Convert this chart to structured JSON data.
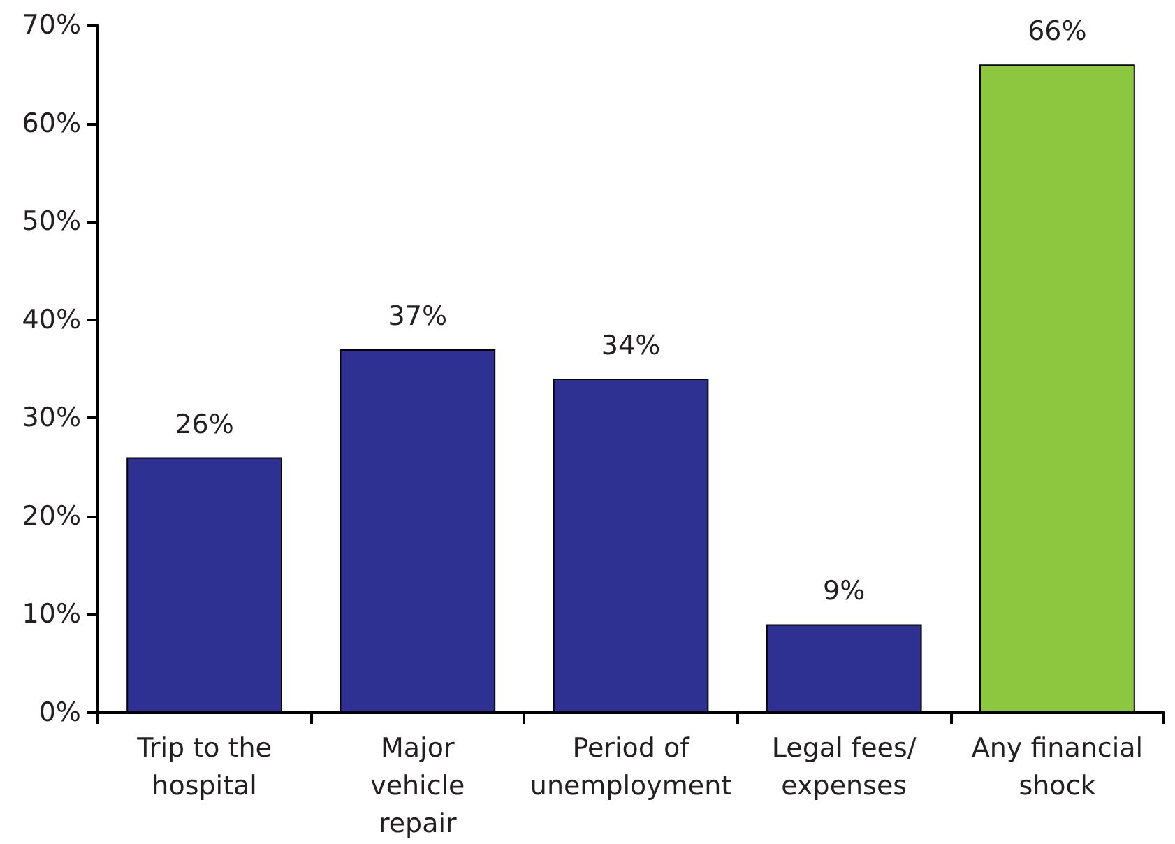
{
  "chart_data": {
    "type": "bar",
    "categories": [
      "Trip to the\nhospital",
      "Major\nvehicle\nrepair",
      "Period of\nunemployment",
      "Legal fees/\nexpenses",
      "Any financial\nshock"
    ],
    "values": [
      26,
      37,
      34,
      9,
      66
    ],
    "colors": [
      "#2e3192",
      "#2e3192",
      "#2e3192",
      "#2e3192",
      "#8dc63f"
    ],
    "value_labels": [
      "26%",
      "37%",
      "34%",
      "9%",
      "66%"
    ],
    "ylim": [
      0,
      70
    ],
    "yticks": [
      {
        "value": 0,
        "label": "0%"
      },
      {
        "value": 10,
        "label": "10%"
      },
      {
        "value": 20,
        "label": "20%"
      },
      {
        "value": 30,
        "label": "30%"
      },
      {
        "value": 40,
        "label": "40%"
      },
      {
        "value": 50,
        "label": "50%"
      },
      {
        "value": 60,
        "label": "60%"
      },
      {
        "value": 70,
        "label": "70%"
      }
    ],
    "grid": false
  }
}
